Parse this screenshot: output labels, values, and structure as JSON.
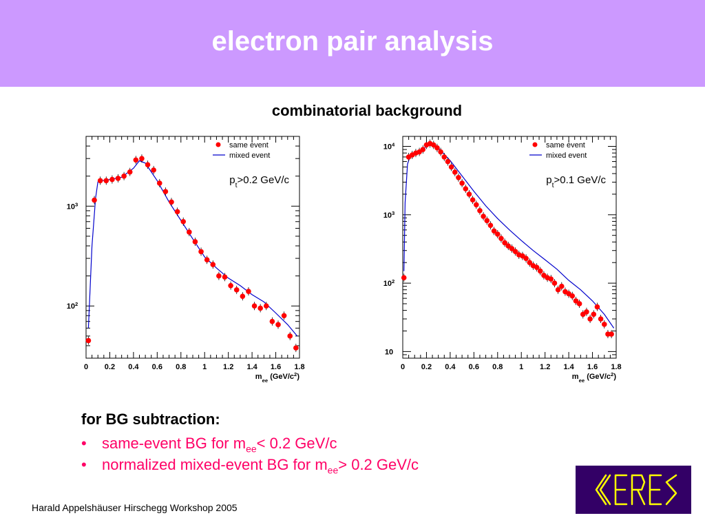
{
  "slide": {
    "title": "electron pair analysis",
    "subtitle": "combinatorial background"
  },
  "bg_subtraction": {
    "heading": "for BG subtraction:",
    "bullets": [
      {
        "text_before": "same-event BG for m",
        "sub": "ee",
        "text_after": "< 0.2 GeV/c"
      },
      {
        "text_before": "normalized mixed-event BG for m",
        "sub": "ee",
        "text_after": "> 0.2 GeV/c"
      }
    ],
    "bullet_symbol": "•"
  },
  "footer": {
    "text": "Harald Appelshäuser  Hirschegg Workshop 2005"
  },
  "logo": {
    "text": "CERES",
    "bg_color": "#330066",
    "fg_color": "#ffff00"
  },
  "colors": {
    "title_bar": "#cc99ff",
    "marker": "#ff0000",
    "line": "#0000cc",
    "bullet_text": "#ff0066"
  },
  "chart_data": [
    {
      "type": "scatter",
      "yscale": "log",
      "xlim": [
        0,
        1.8
      ],
      "ylim": [
        30,
        5000
      ],
      "xlabel": {
        "main": "m",
        "sub": "ee",
        "rest": " (GeV/c",
        "sup": "2",
        "end": ")"
      },
      "xticks": [
        0,
        0.2,
        0.4,
        0.6,
        0.8,
        1,
        1.2,
        1.4,
        1.6,
        1.8
      ],
      "xtick_labels": [
        "0",
        "0.2",
        "0.4",
        "0.6",
        "0.8",
        "1",
        "1.2",
        "1.4",
        "1.6",
        "1.8"
      ],
      "yticks": [
        100,
        1000
      ],
      "ytick_labels": [
        {
          "base": "10",
          "exp": "2"
        },
        {
          "base": "10",
          "exp": "3"
        }
      ],
      "annotation": {
        "main": "p",
        "sub": "t",
        "rest": ">0.2 GeV/c"
      },
      "legend": {
        "position": "top-right",
        "entries": [
          "same event",
          "mixed event"
        ]
      },
      "series": [
        {
          "name": "same event",
          "marker": "circle",
          "x": [
            0.02,
            0.07,
            0.12,
            0.17,
            0.22,
            0.27,
            0.32,
            0.37,
            0.42,
            0.47,
            0.52,
            0.57,
            0.62,
            0.67,
            0.72,
            0.77,
            0.82,
            0.87,
            0.92,
            0.97,
            1.02,
            1.07,
            1.12,
            1.17,
            1.22,
            1.27,
            1.32,
            1.37,
            1.42,
            1.47,
            1.52,
            1.57,
            1.62,
            1.67,
            1.72,
            1.77
          ],
          "y": [
            45,
            1150,
            1800,
            1800,
            1850,
            1900,
            2000,
            2200,
            2900,
            3000,
            2600,
            2300,
            1700,
            1400,
            1100,
            880,
            700,
            550,
            440,
            350,
            290,
            260,
            200,
            195,
            160,
            145,
            125,
            140,
            100,
            95,
            100,
            70,
            65,
            80,
            50,
            38
          ]
        },
        {
          "name": "mixed event",
          "type": "line",
          "x": [
            0.02,
            0.05,
            0.08,
            0.1,
            0.13,
            0.2,
            0.3,
            0.4,
            0.45,
            0.5,
            0.6,
            0.7,
            0.8,
            0.9,
            1.0,
            1.1,
            1.2,
            1.3,
            1.4,
            1.5,
            1.6,
            1.7,
            1.78
          ],
          "y": [
            60,
            400,
            1200,
            1750,
            1800,
            1850,
            1950,
            2400,
            2850,
            2700,
            1800,
            1100,
            720,
            470,
            310,
            240,
            190,
            160,
            130,
            110,
            85,
            65,
            50
          ]
        }
      ]
    },
    {
      "type": "scatter",
      "yscale": "log",
      "xlim": [
        0,
        1.8
      ],
      "ylim": [
        8,
        14000
      ],
      "xlabel": {
        "main": "m",
        "sub": "ee",
        "rest": " (GeV/c",
        "sup": "2",
        "end": ")"
      },
      "xticks": [
        0,
        0.2,
        0.4,
        0.6,
        0.8,
        1,
        1.2,
        1.4,
        1.6,
        1.8
      ],
      "xtick_labels": [
        "0",
        "0.2",
        "0.4",
        "0.6",
        "0.8",
        "1",
        "1.2",
        "1.4",
        "1.6",
        "1.8"
      ],
      "yticks": [
        10,
        100,
        1000,
        10000
      ],
      "ytick_labels": [
        {
          "base": "10",
          "exp": ""
        },
        {
          "base": "10",
          "exp": "2"
        },
        {
          "base": "10",
          "exp": "3"
        },
        {
          "base": "10",
          "exp": "4"
        }
      ],
      "annotation": {
        "main": "p",
        "sub": "t",
        "rest": ">0.1 GeV/c"
      },
      "legend": {
        "position": "top-right",
        "entries": [
          "same event",
          "mixed event"
        ]
      },
      "series": [
        {
          "name": "same event",
          "marker": "circle",
          "x": [
            0.01,
            0.05,
            0.08,
            0.11,
            0.14,
            0.17,
            0.2,
            0.23,
            0.26,
            0.29,
            0.32,
            0.35,
            0.38,
            0.41,
            0.44,
            0.47,
            0.5,
            0.53,
            0.56,
            0.59,
            0.62,
            0.65,
            0.68,
            0.71,
            0.74,
            0.77,
            0.8,
            0.83,
            0.86,
            0.89,
            0.92,
            0.95,
            0.98,
            1.01,
            1.04,
            1.07,
            1.1,
            1.13,
            1.16,
            1.19,
            1.22,
            1.25,
            1.28,
            1.31,
            1.34,
            1.37,
            1.4,
            1.43,
            1.46,
            1.49,
            1.52,
            1.55,
            1.58,
            1.61,
            1.64,
            1.67,
            1.7,
            1.73,
            1.76
          ],
          "y": [
            120,
            7000,
            7500,
            8000,
            8300,
            9000,
            10500,
            11000,
            10500,
            9500,
            8300,
            7000,
            6000,
            5000,
            4200,
            3500,
            2900,
            2400,
            2000,
            1650,
            1400,
            1150,
            950,
            820,
            700,
            580,
            520,
            450,
            390,
            350,
            320,
            290,
            260,
            250,
            230,
            200,
            180,
            170,
            150,
            130,
            120,
            115,
            100,
            80,
            90,
            75,
            70,
            65,
            55,
            50,
            35,
            38,
            30,
            35,
            45,
            30,
            25,
            18,
            18
          ]
        },
        {
          "name": "mixed event",
          "type": "line",
          "x": [
            0.01,
            0.02,
            0.04,
            0.06,
            0.1,
            0.15,
            0.2,
            0.25,
            0.3,
            0.4,
            0.5,
            0.6,
            0.7,
            0.8,
            0.9,
            1.0,
            1.1,
            1.2,
            1.3,
            1.4,
            1.5,
            1.6,
            1.7,
            1.78
          ],
          "y": [
            150,
            1500,
            5500,
            7000,
            7800,
            8500,
            10000,
            10800,
            9500,
            6200,
            3700,
            2200,
            1350,
            880,
            600,
            420,
            300,
            220,
            160,
            110,
            80,
            55,
            35,
            22
          ]
        }
      ]
    }
  ]
}
